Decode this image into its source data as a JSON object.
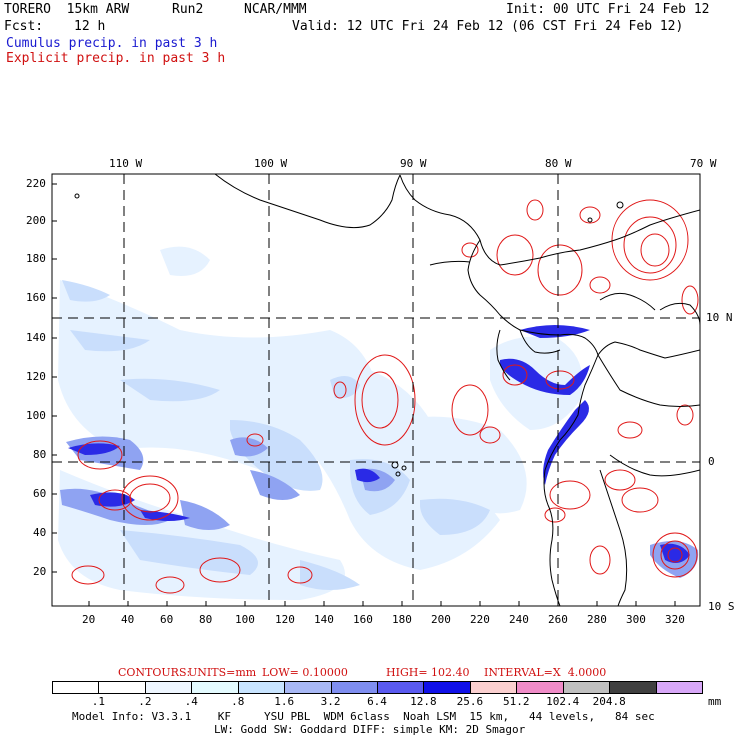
{
  "header": {
    "model": "TORERO  15km ARW",
    "run": "Run2",
    "org": "NCAR/MMM",
    "init": "Init: 00 UTC Fri 24 Feb 12",
    "fcst_label": "Fcst:",
    "fcst_value": "12 h",
    "valid": "Valid: 12 UTC Fri 24 Feb 12 (06 CST Fri 24 Feb 12)",
    "cumulus": "Cumulus precip. in past 3 h",
    "explicit": "Explicit precip. in past 3 h"
  },
  "axes": {
    "top_lon": [
      "110 W",
      "100 W",
      "90 W",
      "80 W",
      "70 W"
    ],
    "right_lat": [
      "10 N",
      "0",
      "10 S"
    ],
    "left_y": [
      "220",
      "200",
      "180",
      "160",
      "140",
      "120",
      "100",
      "80",
      "60",
      "40",
      "20"
    ],
    "bottom_x": [
      "20",
      "40",
      "60",
      "80",
      "100",
      "120",
      "140",
      "160",
      "180",
      "200",
      "220",
      "240",
      "260",
      "280",
      "300",
      "320"
    ]
  },
  "contours": {
    "label": "CONTOURS:",
    "units": "UNITS=mm",
    "low": "LOW= 0.10000",
    "high": "HIGH= 102.40",
    "interval": "INTERVAL=X  4.0000"
  },
  "colorbar": {
    "labels": [
      ".1",
      ".2",
      ".4",
      ".8",
      "1.6",
      "3.2",
      "6.4",
      "12.8",
      "25.6",
      "51.2",
      "102.4",
      "204.8"
    ],
    "unit": "mm",
    "colors": [
      "#ffffff",
      "#ffffff",
      "#eef6ff",
      "#e4fbff",
      "#c8e4ff",
      "#a8b8f5",
      "#7f8ef0",
      "#5a5af0",
      "#1010e8",
      "#fbd0d0",
      "#f08cc8",
      "#c0c0c0",
      "#404040",
      "#d8a8f8"
    ]
  },
  "footer": {
    "line1": "Model Info: V3.3.1    KF     YSU PBL  WDM 6class  Noah LSM  15 km,   44 levels,   84 sec",
    "line2": "LW: Godd SW: Goddard DIFF: simple KM: 2D Smagor"
  }
}
